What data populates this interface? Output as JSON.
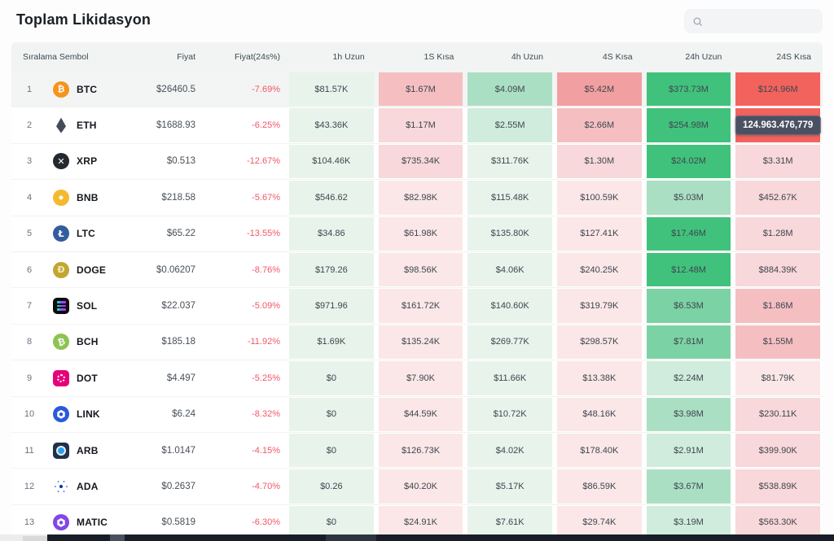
{
  "page": {
    "title": "Toplam Likidasyon",
    "search_placeholder": ""
  },
  "colors": {
    "g0": "#e8f3ec",
    "g1": "#cfecdc",
    "g2": "#abdfc4",
    "g3": "#7bd2a4",
    "g4": "#41c27c",
    "r0": "#fbe7e8",
    "r1": "#f8d8da",
    "r2": "#f5bfc2",
    "r3": "#f29fa1",
    "r4": "#f2635e",
    "change_negative": "#f25767",
    "tooltip_bg": "#4a5162",
    "header_bg": "#f1f4f2"
  },
  "table": {
    "columns": [
      "Sıralama Sembol",
      "Fiyat",
      "Fiyat(24s%)",
      "1h Uzun",
      "1S Kısa",
      "4h Uzun",
      "4S Kısa",
      "24h Uzun",
      "24S Kısa"
    ],
    "tooltip": {
      "text": "124.963.476,779",
      "row": 1,
      "col": 5
    },
    "rows": [
      {
        "rank": "1",
        "symbol": "BTC",
        "highlight": true,
        "icon": {
          "name": "btc-icon",
          "style": "glyph",
          "bg": "#f7931a",
          "fg": "#ffffff",
          "glyph": "₿"
        },
        "price": "$26460.5",
        "change": "-7.69%",
        "cells": [
          {
            "v": "$81.57K",
            "c": "g0"
          },
          {
            "v": "$1.67M",
            "c": "r2"
          },
          {
            "v": "$4.09M",
            "c": "g2"
          },
          {
            "v": "$5.42M",
            "c": "r3"
          },
          {
            "v": "$373.73M",
            "c": "g4"
          },
          {
            "v": "$124.96M",
            "c": "r4"
          }
        ]
      },
      {
        "rank": "2",
        "symbol": "ETH",
        "icon": {
          "name": "eth-icon",
          "style": "eth",
          "bg": "transparent"
        },
        "price": "$1688.93",
        "change": "-6.25%",
        "cells": [
          {
            "v": "$43.36K",
            "c": "g0"
          },
          {
            "v": "$1.17M",
            "c": "r1"
          },
          {
            "v": "$2.55M",
            "c": "g1"
          },
          {
            "v": "$2.66M",
            "c": "r2"
          },
          {
            "v": "$254.98M",
            "c": "g4"
          },
          {
            "v": "",
            "c": "r4"
          }
        ]
      },
      {
        "rank": "3",
        "symbol": "XRP",
        "icon": {
          "name": "xrp-icon",
          "style": "glyph",
          "bg": "#23292f",
          "fg": "#ffffff",
          "glyph": "✕"
        },
        "price": "$0.513",
        "change": "-12.67%",
        "cells": [
          {
            "v": "$104.46K",
            "c": "g0"
          },
          {
            "v": "$735.34K",
            "c": "r1"
          },
          {
            "v": "$311.76K",
            "c": "g0"
          },
          {
            "v": "$1.30M",
            "c": "r1"
          },
          {
            "v": "$24.02M",
            "c": "g4"
          },
          {
            "v": "$3.31M",
            "c": "r1"
          }
        ]
      },
      {
        "rank": "4",
        "symbol": "BNB",
        "icon": {
          "name": "bnb-icon",
          "style": "glyph",
          "bg": "#f3ba2f",
          "fg": "#ffffff",
          "glyph": "◆",
          "size": "8px"
        },
        "price": "$218.58",
        "change": "-5.67%",
        "cells": [
          {
            "v": "$546.62",
            "c": "g0"
          },
          {
            "v": "$82.98K",
            "c": "r0"
          },
          {
            "v": "$115.48K",
            "c": "g0"
          },
          {
            "v": "$100.59K",
            "c": "r0"
          },
          {
            "v": "$5.03M",
            "c": "g2"
          },
          {
            "v": "$452.67K",
            "c": "r1"
          }
        ]
      },
      {
        "rank": "5",
        "symbol": "LTC",
        "icon": {
          "name": "ltc-icon",
          "style": "glyph",
          "bg": "#345d9d",
          "fg": "#ffffff",
          "glyph": "Ł"
        },
        "price": "$65.22",
        "change": "-13.55%",
        "cells": [
          {
            "v": "$34.86",
            "c": "g0"
          },
          {
            "v": "$61.98K",
            "c": "r0"
          },
          {
            "v": "$135.80K",
            "c": "g0"
          },
          {
            "v": "$127.41K",
            "c": "r0"
          },
          {
            "v": "$17.46M",
            "c": "g4"
          },
          {
            "v": "$1.28M",
            "c": "r1"
          }
        ]
      },
      {
        "rank": "6",
        "symbol": "DOGE",
        "icon": {
          "name": "doge-icon",
          "style": "glyph",
          "bg": "#c2a633",
          "fg": "#f6e8b7",
          "glyph": "Ð"
        },
        "price": "$0.06207",
        "change": "-8.76%",
        "cells": [
          {
            "v": "$179.26",
            "c": "g0"
          },
          {
            "v": "$98.56K",
            "c": "r0"
          },
          {
            "v": "$4.06K",
            "c": "g0"
          },
          {
            "v": "$240.25K",
            "c": "r0"
          },
          {
            "v": "$12.48M",
            "c": "g4"
          },
          {
            "v": "$884.39K",
            "c": "r1"
          }
        ]
      },
      {
        "rank": "7",
        "symbol": "SOL",
        "icon": {
          "name": "sol-icon",
          "style": "sol",
          "bg": "#0b0b0f"
        },
        "price": "$22.037",
        "change": "-5.09%",
        "cells": [
          {
            "v": "$971.96",
            "c": "g0"
          },
          {
            "v": "$161.72K",
            "c": "r0"
          },
          {
            "v": "$140.60K",
            "c": "g0"
          },
          {
            "v": "$319.79K",
            "c": "r0"
          },
          {
            "v": "$6.53M",
            "c": "g3"
          },
          {
            "v": "$1.86M",
            "c": "r2"
          }
        ]
      },
      {
        "rank": "8",
        "symbol": "BCH",
        "icon": {
          "name": "bch-icon",
          "style": "glyph",
          "bg": "#8dc351",
          "fg": "#ffffff",
          "glyph": "₿",
          "rotate": "-15deg"
        },
        "price": "$185.18",
        "change": "-11.92%",
        "cells": [
          {
            "v": "$1.69K",
            "c": "g0"
          },
          {
            "v": "$135.24K",
            "c": "r0"
          },
          {
            "v": "$269.77K",
            "c": "g0"
          },
          {
            "v": "$298.57K",
            "c": "r0"
          },
          {
            "v": "$7.81M",
            "c": "g3"
          },
          {
            "v": "$1.55M",
            "c": "r2"
          }
        ]
      },
      {
        "rank": "9",
        "symbol": "DOT",
        "icon": {
          "name": "dot-icon",
          "style": "dot",
          "bg": "#e6007a"
        },
        "price": "$4.497",
        "change": "-5.25%",
        "cells": [
          {
            "v": "$0",
            "c": "g0"
          },
          {
            "v": "$7.90K",
            "c": "r0"
          },
          {
            "v": "$11.66K",
            "c": "g0"
          },
          {
            "v": "$13.38K",
            "c": "r0"
          },
          {
            "v": "$2.24M",
            "c": "g1"
          },
          {
            "v": "$81.79K",
            "c": "r0"
          }
        ]
      },
      {
        "rank": "10",
        "symbol": "LINK",
        "icon": {
          "name": "link-icon",
          "style": "hexring",
          "bg": "#2a5ada"
        },
        "price": "$6.24",
        "change": "-8.32%",
        "cells": [
          {
            "v": "$0",
            "c": "g0"
          },
          {
            "v": "$44.59K",
            "c": "r0"
          },
          {
            "v": "$10.72K",
            "c": "g0"
          },
          {
            "v": "$48.16K",
            "c": "r0"
          },
          {
            "v": "$3.98M",
            "c": "g2"
          },
          {
            "v": "$230.11K",
            "c": "r1"
          }
        ]
      },
      {
        "rank": "11",
        "symbol": "ARB",
        "icon": {
          "name": "arb-icon",
          "style": "arb",
          "bg": "#203147"
        },
        "price": "$1.0147",
        "change": "-4.15%",
        "cells": [
          {
            "v": "$0",
            "c": "g0"
          },
          {
            "v": "$126.73K",
            "c": "r0"
          },
          {
            "v": "$4.02K",
            "c": "g0"
          },
          {
            "v": "$178.40K",
            "c": "r0"
          },
          {
            "v": "$2.91M",
            "c": "g1"
          },
          {
            "v": "$399.90K",
            "c": "r1"
          }
        ]
      },
      {
        "rank": "12",
        "symbol": "ADA",
        "icon": {
          "name": "ada-icon",
          "style": "ada",
          "bg": "transparent",
          "fg": "#0033ad"
        },
        "price": "$0.2637",
        "change": "-4.70%",
        "cells": [
          {
            "v": "$0.26",
            "c": "g0"
          },
          {
            "v": "$40.20K",
            "c": "r0"
          },
          {
            "v": "$5.17K",
            "c": "g0"
          },
          {
            "v": "$86.59K",
            "c": "r0"
          },
          {
            "v": "$3.67M",
            "c": "g2"
          },
          {
            "v": "$538.89K",
            "c": "r1"
          }
        ]
      },
      {
        "rank": "13",
        "symbol": "MATIC",
        "icon": {
          "name": "matic-icon",
          "style": "hexring",
          "bg": "#8247e5"
        },
        "price": "$0.5819",
        "change": "-6.30%",
        "cells": [
          {
            "v": "$0",
            "c": "g0"
          },
          {
            "v": "$24.91K",
            "c": "r0"
          },
          {
            "v": "$7.61K",
            "c": "g0"
          },
          {
            "v": "$29.74K",
            "c": "r0"
          },
          {
            "v": "$3.19M",
            "c": "g1"
          },
          {
            "v": "$563.30K",
            "c": "r1"
          }
        ]
      }
    ]
  }
}
